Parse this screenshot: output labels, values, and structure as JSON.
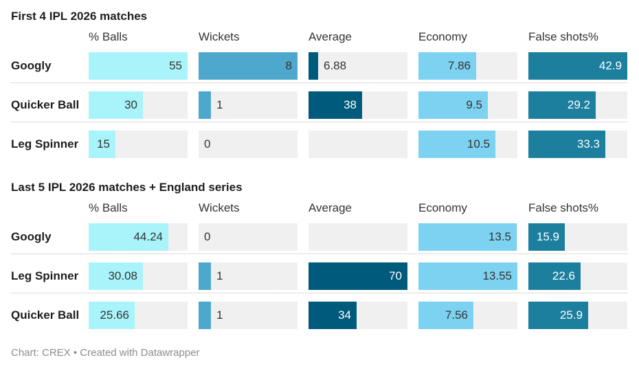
{
  "footer": "Chart: CREX • Created with Datawrapper",
  "colors": {
    "balls": "#a8f4fa",
    "wickets": "#4ea7cc",
    "average": "#005a7c",
    "economy": "#7dd2f2",
    "false_shots": "#1d7f9e",
    "cell_background": "#f0f0f0"
  },
  "chart_data": {
    "type": "table",
    "columns": [
      "% Balls",
      "Wickets",
      "Average",
      "Economy",
      "False shots%"
    ],
    "scales": [
      [
        0,
        55
      ],
      [
        0,
        8
      ],
      [
        0,
        70
      ],
      [
        0,
        13.55
      ],
      [
        0,
        42.9
      ]
    ],
    "sections": [
      {
        "title": "First 4 IPL 2026 matches",
        "rows": [
          {
            "label": "Googly",
            "values": [
              "55",
              "8",
              "6.88",
              "7.86",
              "42.9"
            ]
          },
          {
            "label": "Quicker Ball",
            "values": [
              "30",
              "1",
              "38",
              "9.5",
              "29.2"
            ]
          },
          {
            "label": "Leg Spinner",
            "values": [
              "15",
              "0",
              "",
              "10.5",
              "33.3"
            ]
          }
        ]
      },
      {
        "title": "Last 5 IPL 2026 matches + England series",
        "rows": [
          {
            "label": "Googly",
            "values": [
              "44.24",
              "0",
              "",
              "13.5",
              "15.9"
            ]
          },
          {
            "label": "Leg Spinner",
            "values": [
              "30.08",
              "1",
              "70",
              "13.55",
              "22.6"
            ]
          },
          {
            "label": "Quicker Ball",
            "values": [
              "25.66",
              "1",
              "34",
              "7.56",
              "25.9"
            ]
          }
        ]
      }
    ]
  }
}
